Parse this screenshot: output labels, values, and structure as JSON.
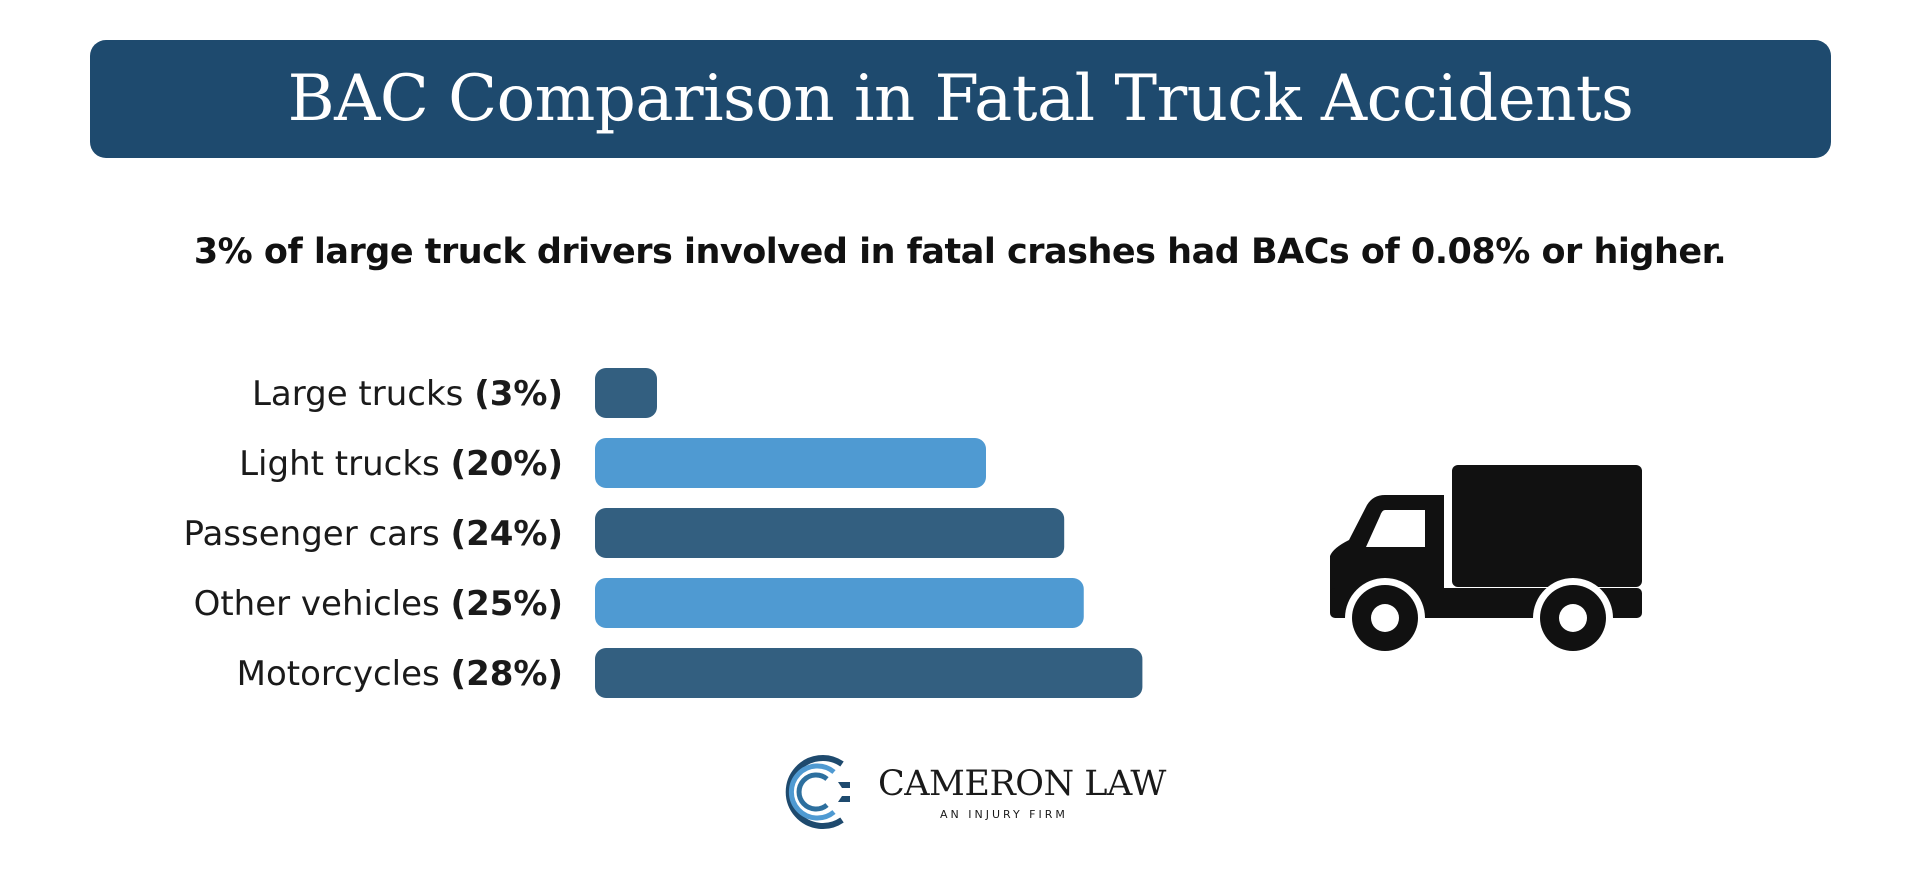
{
  "header": {
    "title": "BAC Comparison in Fatal Truck Accidents",
    "subtitle": "3% of large truck drivers involved in fatal crashes had BACs of 0.08% or higher."
  },
  "chart_data": {
    "type": "bar",
    "orientation": "horizontal",
    "categories": [
      "Large trucks",
      "Light trucks",
      "Passenger cars",
      "Other vehicles",
      "Motorcycles"
    ],
    "value_labels": [
      "(3%)",
      "(20%)",
      "(24%)",
      "(25%)",
      "(28%)"
    ],
    "values": [
      3,
      20,
      24,
      25,
      28
    ],
    "unit": "%",
    "colors": [
      "#335f80",
      "#4f9ad2",
      "#335f80",
      "#4f9ad2",
      "#335f80"
    ],
    "grid": false,
    "legend": "none"
  },
  "illustration": {
    "icon": "truck-icon",
    "color": "#111111"
  },
  "logo": {
    "name": "CAMERON LAW",
    "tagline": "AN INJURY FIRM",
    "mark_colors": [
      "#2d6f9e",
      "#4f9ad2",
      "#1e4a6e"
    ]
  }
}
